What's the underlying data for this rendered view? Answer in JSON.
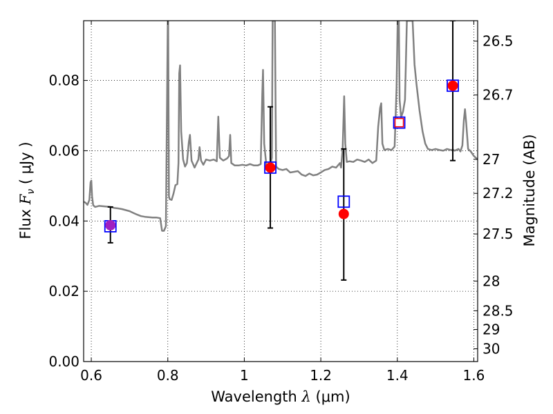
{
  "chart_data": {
    "type": "scatter",
    "title": "",
    "xlabel": "Wavelength  λ (μm)",
    "ylabel": "Flux  F_ν  ( μJy )",
    "ylabel_parts": {
      "prefix": "Flux  ",
      "symbol": "F",
      "subscript": "ν",
      "suffix": "  ( μJy )"
    },
    "xlabel_parts": {
      "prefix": "Wavelength  ",
      "symbol": "λ",
      "suffix": " (μm)"
    },
    "y2label": "Magnitude (AB)",
    "xlim": [
      0.58,
      1.61
    ],
    "ylim": [
      0.0,
      0.097
    ],
    "grid": true,
    "x_ticks": [
      {
        "value": 0.6,
        "label": "0.6"
      },
      {
        "value": 0.8,
        "label": "0.8"
      },
      {
        "value": 1.0,
        "label": "1"
      },
      {
        "value": 1.2,
        "label": "1.2"
      },
      {
        "value": 1.4,
        "label": "1.4"
      },
      {
        "value": 1.6,
        "label": "1.6"
      }
    ],
    "y_ticks": [
      {
        "value": 0.0,
        "label": "0.00"
      },
      {
        "value": 0.02,
        "label": "0.02"
      },
      {
        "value": 0.04,
        "label": "0.04"
      },
      {
        "value": 0.06,
        "label": "0.06"
      },
      {
        "value": 0.08,
        "label": "0.08"
      }
    ],
    "y2_ticks": [
      {
        "value": 26.5,
        "label": "26.5"
      },
      {
        "value": 26.7,
        "label": "26.7"
      },
      {
        "value": 27.0,
        "label": "27"
      },
      {
        "value": 27.2,
        "label": "27.2"
      },
      {
        "value": 27.5,
        "label": "27.5"
      },
      {
        "value": 28.0,
        "label": "28"
      },
      {
        "value": 28.5,
        "label": "28.5"
      },
      {
        "value": 29.0,
        "label": "29"
      },
      {
        "value": 30.0,
        "label": "30"
      }
    ],
    "series": [
      {
        "kind": "line",
        "color": "#808080",
        "points": [
          [
            0.58,
            0.0455
          ],
          [
            0.585,
            0.0452
          ],
          [
            0.59,
            0.0446
          ],
          [
            0.595,
            0.046
          ],
          [
            0.598,
            0.051
          ],
          [
            0.6,
            0.0515
          ],
          [
            0.602,
            0.047
          ],
          [
            0.605,
            0.0445
          ],
          [
            0.61,
            0.044
          ],
          [
            0.62,
            0.0443
          ],
          [
            0.63,
            0.0442
          ],
          [
            0.64,
            0.0441
          ],
          [
            0.65,
            0.044
          ],
          [
            0.66,
            0.0437
          ],
          [
            0.67,
            0.0436
          ],
          [
            0.68,
            0.0434
          ],
          [
            0.69,
            0.0431
          ],
          [
            0.7,
            0.0428
          ],
          [
            0.71,
            0.0423
          ],
          [
            0.72,
            0.0418
          ],
          [
            0.73,
            0.0414
          ],
          [
            0.74,
            0.0412
          ],
          [
            0.75,
            0.0411
          ],
          [
            0.76,
            0.041
          ],
          [
            0.77,
            0.041
          ],
          [
            0.78,
            0.0408
          ],
          [
            0.785,
            0.0372
          ],
          [
            0.79,
            0.0372
          ],
          [
            0.795,
            0.0385
          ],
          [
            0.8,
            0.097
          ],
          [
            0.801,
            0.097
          ],
          [
            0.803,
            0.047
          ],
          [
            0.805,
            0.0462
          ],
          [
            0.81,
            0.046
          ],
          [
            0.815,
            0.0478
          ],
          [
            0.82,
            0.0502
          ],
          [
            0.825,
            0.0505
          ],
          [
            0.828,
            0.0565
          ],
          [
            0.83,
            0.082
          ],
          [
            0.832,
            0.0843
          ],
          [
            0.835,
            0.0655
          ],
          [
            0.84,
            0.0575
          ],
          [
            0.845,
            0.0555
          ],
          [
            0.85,
            0.0565
          ],
          [
            0.855,
            0.0625
          ],
          [
            0.858,
            0.0645
          ],
          [
            0.862,
            0.0572
          ],
          [
            0.87,
            0.0552
          ],
          [
            0.88,
            0.0575
          ],
          [
            0.883,
            0.061
          ],
          [
            0.887,
            0.0572
          ],
          [
            0.893,
            0.056
          ],
          [
            0.9,
            0.0575
          ],
          [
            0.91,
            0.0572
          ],
          [
            0.92,
            0.0575
          ],
          [
            0.928,
            0.057
          ],
          [
            0.932,
            0.0697
          ],
          [
            0.936,
            0.058
          ],
          [
            0.945,
            0.0572
          ],
          [
            0.955,
            0.0578
          ],
          [
            0.96,
            0.0585
          ],
          [
            0.963,
            0.0645
          ],
          [
            0.966,
            0.0565
          ],
          [
            0.975,
            0.0558
          ],
          [
            0.985,
            0.0558
          ],
          [
            0.995,
            0.056
          ],
          [
            1.005,
            0.0558
          ],
          [
            1.015,
            0.0562
          ],
          [
            1.025,
            0.0558
          ],
          [
            1.035,
            0.0558
          ],
          [
            1.043,
            0.0562
          ],
          [
            1.047,
            0.076
          ],
          [
            1.049,
            0.083
          ],
          [
            1.052,
            0.062
          ],
          [
            1.058,
            0.0555
          ],
          [
            1.063,
            0.0552
          ],
          [
            1.068,
            0.056
          ],
          [
            1.072,
            0.058
          ],
          [
            1.074,
            0.097
          ],
          [
            1.08,
            0.097
          ],
          [
            1.083,
            0.0555
          ],
          [
            1.09,
            0.0548
          ],
          [
            1.1,
            0.0545
          ],
          [
            1.11,
            0.0548
          ],
          [
            1.12,
            0.0538
          ],
          [
            1.13,
            0.054
          ],
          [
            1.14,
            0.0542
          ],
          [
            1.15,
            0.0532
          ],
          [
            1.16,
            0.0528
          ],
          [
            1.17,
            0.0535
          ],
          [
            1.18,
            0.053
          ],
          [
            1.19,
            0.0532
          ],
          [
            1.2,
            0.0538
          ],
          [
            1.21,
            0.0545
          ],
          [
            1.22,
            0.0548
          ],
          [
            1.23,
            0.0555
          ],
          [
            1.24,
            0.0552
          ],
          [
            1.25,
            0.0565
          ],
          [
            1.253,
            0.0552
          ],
          [
            1.257,
            0.0605
          ],
          [
            1.261,
            0.0755
          ],
          [
            1.264,
            0.062
          ],
          [
            1.268,
            0.0568
          ],
          [
            1.275,
            0.057
          ],
          [
            1.285,
            0.0568
          ],
          [
            1.295,
            0.0575
          ],
          [
            1.305,
            0.0572
          ],
          [
            1.315,
            0.0568
          ],
          [
            1.325,
            0.0575
          ],
          [
            1.335,
            0.0565
          ],
          [
            1.345,
            0.0572
          ],
          [
            1.35,
            0.0668
          ],
          [
            1.355,
            0.0722
          ],
          [
            1.358,
            0.0735
          ],
          [
            1.361,
            0.062
          ],
          [
            1.366,
            0.0602
          ],
          [
            1.375,
            0.0605
          ],
          [
            1.385,
            0.0602
          ],
          [
            1.393,
            0.0612
          ],
          [
            1.398,
            0.078
          ],
          [
            1.401,
            0.097
          ],
          [
            1.404,
            0.097
          ],
          [
            1.406,
            0.0745
          ],
          [
            1.41,
            0.0695
          ],
          [
            1.415,
            0.0712
          ],
          [
            1.42,
            0.0745
          ],
          [
            1.425,
            0.097
          ],
          [
            1.44,
            0.097
          ],
          [
            1.445,
            0.0845
          ],
          [
            1.45,
            0.079
          ],
          [
            1.458,
            0.0715
          ],
          [
            1.466,
            0.0655
          ],
          [
            1.473,
            0.062
          ],
          [
            1.48,
            0.0605
          ],
          [
            1.49,
            0.0602
          ],
          [
            1.5,
            0.0605
          ],
          [
            1.51,
            0.0602
          ],
          [
            1.52,
            0.06
          ],
          [
            1.53,
            0.0605
          ],
          [
            1.54,
            0.0602
          ],
          [
            1.545,
            0.0603
          ],
          [
            1.55,
            0.06
          ],
          [
            1.56,
            0.0605
          ],
          [
            1.565,
            0.0598
          ],
          [
            1.57,
            0.0615
          ],
          [
            1.574,
            0.0688
          ],
          [
            1.577,
            0.0718
          ],
          [
            1.58,
            0.068
          ],
          [
            1.585,
            0.0605
          ],
          [
            1.592,
            0.0598
          ],
          [
            1.6,
            0.0585
          ],
          [
            1.605,
            0.058
          ],
          [
            1.61,
            0.0575
          ]
        ]
      },
      {
        "kind": "errorbar",
        "color": "#000000",
        "points": [
          {
            "x": 0.65,
            "y": 0.039,
            "ylo": 0.0338,
            "yhi": 0.044
          },
          {
            "x": 1.068,
            "y": 0.0552,
            "ylo": 0.038,
            "yhi": 0.0725
          },
          {
            "x": 1.26,
            "y": 0.042,
            "ylo": 0.0232,
            "yhi": 0.0605
          },
          {
            "x": 1.545,
            "y": 0.0785,
            "ylo": 0.0572,
            "yhi": 0.097
          }
        ]
      },
      {
        "kind": "square",
        "color": "#0000ff",
        "points": [
          [
            0.65,
            0.0385
          ],
          [
            1.068,
            0.0552
          ],
          [
            1.26,
            0.0455
          ],
          [
            1.405,
            0.068
          ],
          [
            1.545,
            0.0785
          ]
        ]
      },
      {
        "kind": "circle",
        "color": "#ff0000",
        "points": [
          [
            0.65,
            0.0388,
            "#a020c0"
          ],
          [
            1.068,
            0.0552,
            "#ff0000"
          ],
          [
            1.26,
            0.042,
            "#ff0000"
          ],
          [
            1.545,
            0.0785,
            "#ff0000"
          ]
        ]
      }
    ],
    "open_square_fill": {
      "x": 1.405,
      "y": 0.068,
      "fill": "#ffffff",
      "edge": "#ff0000"
    }
  }
}
